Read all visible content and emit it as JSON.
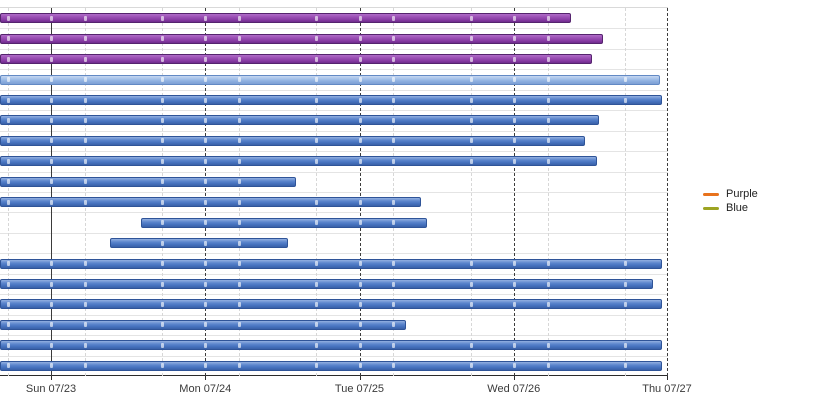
{
  "chart_data": {
    "type": "gantt",
    "title": "",
    "x_axis": {
      "tick_labels": [
        "Sun 07/23",
        "Mon 07/24",
        "Tue 07/25",
        "Wed 07/26",
        "Thu 07/27"
      ],
      "tick_positions_days": [
        0,
        1,
        2,
        3,
        4
      ],
      "range_days": [
        -0.33,
        4.0
      ],
      "major_gridline_style": {
        "day0": "solid",
        "others": "dashed"
      },
      "minor_gridlines_days": [
        -0.28,
        0.22,
        0.72,
        1.22,
        1.72,
        2.22,
        2.72,
        3.22,
        3.72
      ],
      "grid": "on"
    },
    "bars": [
      {
        "row": 1,
        "color": "purple",
        "start_days": -0.33,
        "end_days": 3.37
      },
      {
        "row": 2,
        "color": "purple",
        "start_days": -0.33,
        "end_days": 3.58
      },
      {
        "row": 3,
        "color": "purple",
        "start_days": -0.33,
        "end_days": 3.51
      },
      {
        "row": 4,
        "color": "lightblue",
        "start_days": -0.33,
        "end_days": 3.95
      },
      {
        "row": 5,
        "color": "blue",
        "start_days": -0.33,
        "end_days": 3.96
      },
      {
        "row": 6,
        "color": "blue",
        "start_days": -0.33,
        "end_days": 3.55
      },
      {
        "row": 7,
        "color": "blue",
        "start_days": -0.33,
        "end_days": 3.46
      },
      {
        "row": 8,
        "color": "blue",
        "start_days": -0.33,
        "end_days": 3.54
      },
      {
        "row": 9,
        "color": "blue",
        "start_days": -0.33,
        "end_days": 1.59
      },
      {
        "row": 10,
        "color": "blue",
        "start_days": -0.33,
        "end_days": 2.4
      },
      {
        "row": 11,
        "color": "blue",
        "start_days": 0.58,
        "end_days": 2.44
      },
      {
        "row": 12,
        "color": "blue",
        "start_days": 0.38,
        "end_days": 1.54
      },
      {
        "row": 13,
        "color": "blue",
        "start_days": -0.33,
        "end_days": 3.96
      },
      {
        "row": 14,
        "color": "blue",
        "start_days": -0.33,
        "end_days": 3.9
      },
      {
        "row": 15,
        "color": "blue",
        "start_days": -0.33,
        "end_days": 3.96
      },
      {
        "row": 16,
        "color": "blue",
        "start_days": -0.33,
        "end_days": 2.3
      },
      {
        "row": 17,
        "color": "blue",
        "start_days": -0.33,
        "end_days": 3.96
      },
      {
        "row": 18,
        "color": "blue",
        "start_days": -0.33,
        "end_days": 3.96
      }
    ],
    "legend": {
      "position": "right",
      "items": [
        {
          "label": "Purple",
          "swatch_color": "#e8721c"
        },
        {
          "label": "Blue",
          "swatch_color": "#9da422"
        }
      ]
    },
    "palette": {
      "purple_bar": "#8a3da6",
      "blue_bar": "#4672bf",
      "lightblue_bar": "#8badde",
      "axis_text": "#3a3a3a",
      "major_gridline": "#3a3a3a",
      "minor_gridline": "#d7d7d7"
    }
  }
}
